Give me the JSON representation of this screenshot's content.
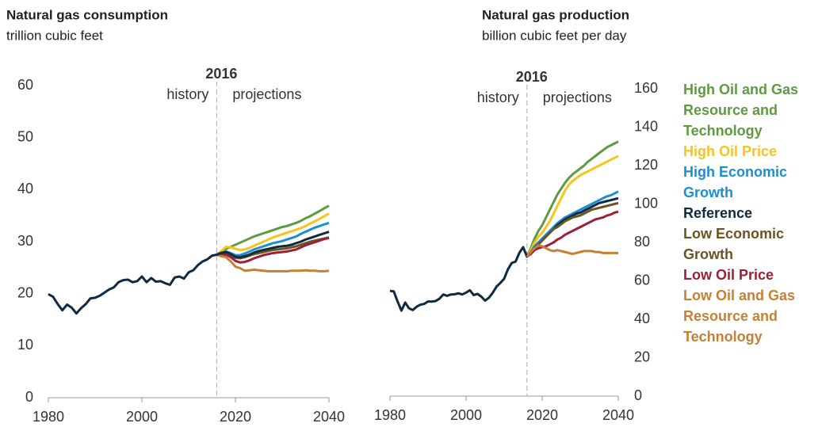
{
  "chart_data": [
    {
      "type": "line",
      "title": "Natural gas consumption",
      "subtitle": "trillion cubic feet",
      "divider": 2016,
      "annotations": [
        "history",
        "projections"
      ],
      "x": [
        1980,
        1981,
        1982,
        1983,
        1984,
        1985,
        1986,
        1987,
        1988,
        1989,
        1990,
        1991,
        1992,
        1993,
        1994,
        1995,
        1996,
        1997,
        1998,
        1999,
        2000,
        2001,
        2002,
        2003,
        2004,
        2005,
        2006,
        2007,
        2008,
        2009,
        2010,
        2011,
        2012,
        2013,
        2014,
        2015,
        2016,
        2017,
        2018,
        2019,
        2020,
        2021,
        2022,
        2023,
        2024,
        2025,
        2026,
        2027,
        2028,
        2029,
        2030,
        2031,
        2032,
        2033,
        2034,
        2035,
        2036,
        2037,
        2038,
        2039,
        2040
      ],
      "xlim": [
        1980,
        2040
      ],
      "xticks": [
        1980,
        2000,
        2020,
        2040
      ],
      "ylim": [
        0,
        60
      ],
      "yticks": [
        0,
        10,
        20,
        30,
        40,
        50,
        60
      ],
      "series": [
        {
          "name": "High Oil and Gas Resource and Technology",
          "color": "#5e9a3f",
          "values": [
            null,
            null,
            null,
            null,
            null,
            null,
            null,
            null,
            null,
            null,
            null,
            null,
            null,
            null,
            null,
            null,
            null,
            null,
            null,
            null,
            null,
            null,
            null,
            null,
            null,
            null,
            null,
            null,
            null,
            null,
            null,
            null,
            null,
            null,
            null,
            null,
            27.5,
            28.0,
            28.6,
            29.0,
            29.4,
            29.8,
            30.2,
            30.6,
            31.0,
            31.3,
            31.6,
            31.9,
            32.2,
            32.5,
            32.8,
            33.0,
            33.3,
            33.6,
            34.0,
            34.5,
            34.9,
            35.4,
            35.9,
            36.4,
            36.9
          ]
        },
        {
          "name": "High Oil Price",
          "color": "#f7c41f",
          "values": [
            null,
            null,
            null,
            null,
            null,
            null,
            null,
            null,
            null,
            null,
            null,
            null,
            null,
            null,
            null,
            null,
            null,
            null,
            null,
            null,
            null,
            null,
            null,
            null,
            null,
            null,
            null,
            null,
            null,
            null,
            null,
            null,
            null,
            null,
            null,
            null,
            27.5,
            28.2,
            29.0,
            28.9,
            28.6,
            28.4,
            28.5,
            28.8,
            29.2,
            29.6,
            30.0,
            30.4,
            30.8,
            31.1,
            31.4,
            31.7,
            32.0,
            32.3,
            32.6,
            33.0,
            33.5,
            33.9,
            34.4,
            34.9,
            35.4
          ]
        },
        {
          "name": "High Economic Growth",
          "color": "#1b8fd2",
          "values": [
            null,
            null,
            null,
            null,
            null,
            null,
            null,
            null,
            null,
            null,
            null,
            null,
            null,
            null,
            null,
            null,
            null,
            null,
            null,
            null,
            null,
            null,
            null,
            null,
            null,
            null,
            null,
            null,
            null,
            null,
            null,
            null,
            null,
            null,
            null,
            null,
            27.5,
            27.9,
            28.1,
            27.8,
            27.4,
            27.4,
            27.7,
            28.1,
            28.5,
            28.8,
            29.1,
            29.4,
            29.7,
            29.9,
            30.1,
            30.4,
            30.7,
            31.0,
            31.5,
            31.9,
            32.3,
            32.7,
            33.0,
            33.3,
            33.6
          ]
        },
        {
          "name": "Low Economic Growth",
          "color": "#6b5424",
          "values": [
            null,
            null,
            null,
            null,
            null,
            null,
            null,
            null,
            null,
            null,
            null,
            null,
            null,
            null,
            null,
            null,
            null,
            null,
            null,
            null,
            null,
            null,
            null,
            null,
            null,
            null,
            null,
            null,
            null,
            null,
            null,
            null,
            null,
            null,
            null,
            null,
            27.5,
            27.8,
            27.9,
            27.4,
            26.9,
            26.8,
            27.0,
            27.3,
            27.6,
            27.8,
            28.0,
            28.2,
            28.4,
            28.5,
            28.6,
            28.7,
            28.9,
            29.1,
            29.4,
            29.7,
            30.0,
            30.2,
            30.4,
            30.6,
            30.8
          ]
        },
        {
          "name": "Low Oil Price",
          "color": "#9b1f36",
          "values": [
            null,
            null,
            null,
            null,
            null,
            null,
            null,
            null,
            null,
            null,
            null,
            null,
            null,
            null,
            null,
            null,
            null,
            null,
            null,
            null,
            null,
            null,
            null,
            null,
            null,
            null,
            null,
            null,
            null,
            null,
            null,
            null,
            null,
            null,
            null,
            null,
            27.5,
            27.4,
            27.5,
            27.0,
            26.3,
            26.0,
            26.1,
            26.4,
            26.8,
            27.1,
            27.4,
            27.6,
            27.8,
            27.9,
            28.0,
            28.1,
            28.3,
            28.5,
            28.9,
            29.3,
            29.6,
            29.9,
            30.2,
            30.5,
            30.7
          ]
        },
        {
          "name": "Low Oil and Gas Resource and Technology",
          "color": "#c58035",
          "values": [
            null,
            null,
            null,
            null,
            null,
            null,
            null,
            null,
            null,
            null,
            null,
            null,
            null,
            null,
            null,
            null,
            null,
            null,
            null,
            null,
            null,
            null,
            null,
            null,
            null,
            null,
            null,
            null,
            null,
            null,
            null,
            null,
            null,
            null,
            null,
            null,
            27.5,
            27.2,
            27.0,
            26.2,
            25.2,
            24.9,
            24.4,
            24.5,
            24.6,
            24.5,
            24.4,
            24.3,
            24.3,
            24.3,
            24.3,
            24.3,
            24.4,
            24.4,
            24.4,
            24.5,
            24.4,
            24.4,
            24.3,
            24.3,
            24.4
          ]
        },
        {
          "name": "Reference",
          "color": "#0f2a40",
          "values": [
            19.9,
            19.4,
            18.0,
            16.8,
            17.9,
            17.3,
            16.2,
            17.2,
            18.0,
            19.1,
            19.2,
            19.6,
            20.2,
            20.8,
            21.2,
            22.2,
            22.6,
            22.7,
            22.2,
            22.4,
            23.3,
            22.2,
            23.0,
            22.3,
            22.4,
            22.0,
            21.7,
            23.1,
            23.3,
            22.9,
            24.1,
            24.5,
            25.5,
            26.2,
            26.6,
            27.3,
            27.5,
            27.8,
            28.0,
            27.6,
            27.1,
            27.0,
            27.2,
            27.5,
            27.9,
            28.2,
            28.4,
            28.6,
            28.8,
            29.0,
            29.1,
            29.2,
            29.4,
            29.7,
            30.0,
            30.4,
            30.7,
            31.0,
            31.3,
            31.6,
            31.9
          ]
        }
      ]
    },
    {
      "type": "line",
      "title": "Natural gas production",
      "subtitle": "billion cubic feet per day",
      "divider": 2016,
      "annotations": [
        "history",
        "projections"
      ],
      "x": [
        1980,
        1981,
        1982,
        1983,
        1984,
        1985,
        1986,
        1987,
        1988,
        1989,
        1990,
        1991,
        1992,
        1993,
        1994,
        1995,
        1996,
        1997,
        1998,
        1999,
        2000,
        2001,
        2002,
        2003,
        2004,
        2005,
        2006,
        2007,
        2008,
        2009,
        2010,
        2011,
        2012,
        2013,
        2014,
        2015,
        2016,
        2017,
        2018,
        2019,
        2020,
        2021,
        2022,
        2023,
        2024,
        2025,
        2026,
        2027,
        2028,
        2029,
        2030,
        2031,
        2032,
        2033,
        2034,
        2035,
        2036,
        2037,
        2038,
        2039,
        2040
      ],
      "xlim": [
        1980,
        2040
      ],
      "xticks": [
        1980,
        2000,
        2020,
        2040
      ],
      "ylim": [
        0,
        160
      ],
      "yticks": [
        0,
        20,
        40,
        60,
        80,
        100,
        120,
        140,
        160
      ],
      "series": [
        {
          "name": "High Oil and Gas Resource and Technology",
          "color": "#5e9a3f",
          "values": [
            null,
            null,
            null,
            null,
            null,
            null,
            null,
            null,
            null,
            null,
            null,
            null,
            null,
            null,
            null,
            null,
            null,
            null,
            null,
            null,
            null,
            null,
            null,
            null,
            null,
            null,
            null,
            null,
            null,
            null,
            null,
            null,
            null,
            null,
            null,
            null,
            72.6,
            77,
            82,
            86,
            89,
            93,
            97,
            101,
            105,
            108,
            111,
            113.5,
            115.5,
            117,
            118.5,
            120,
            122,
            123.5,
            125,
            126.5,
            128,
            129.5,
            130.5,
            131.5,
            132.5
          ]
        },
        {
          "name": "High Oil Price",
          "color": "#f7c41f",
          "values": [
            null,
            null,
            null,
            null,
            null,
            null,
            null,
            null,
            null,
            null,
            null,
            null,
            null,
            null,
            null,
            null,
            null,
            null,
            null,
            null,
            null,
            null,
            null,
            null,
            null,
            null,
            null,
            null,
            null,
            null,
            null,
            null,
            null,
            null,
            null,
            null,
            72.6,
            76,
            80,
            83,
            85,
            88,
            91,
            95,
            99,
            103,
            107,
            110,
            112,
            113.5,
            115,
            116,
            117,
            118,
            119,
            120,
            121,
            122,
            123,
            124,
            125
          ]
        },
        {
          "name": "High Economic Growth",
          "color": "#1b8fd2",
          "values": [
            null,
            null,
            null,
            null,
            null,
            null,
            null,
            null,
            null,
            null,
            null,
            null,
            null,
            null,
            null,
            null,
            null,
            null,
            null,
            null,
            null,
            null,
            null,
            null,
            null,
            null,
            null,
            null,
            null,
            null,
            null,
            null,
            null,
            null,
            null,
            null,
            72.6,
            75,
            78,
            80,
            82,
            84,
            86,
            88,
            90,
            91.5,
            93,
            94,
            95,
            96,
            97,
            98,
            99,
            100,
            101,
            102,
            103,
            104,
            104.5,
            105.5,
            106.5
          ]
        },
        {
          "name": "Reference",
          "color": "#0f2a40",
          "values": [
            54.8,
            54.5,
            49.2,
            44.5,
            48.7,
            45.7,
            44.8,
            46.5,
            47.6,
            48.0,
            49.3,
            49.2,
            49.5,
            50.7,
            52.9,
            52.2,
            52.9,
            53.0,
            53.5,
            52.9,
            53.9,
            55.1,
            52.6,
            53.2,
            51.8,
            49.7,
            51.2,
            53.8,
            57.0,
            58.9,
            61.1,
            66.0,
            69.3,
            70.0,
            74.6,
            77.5,
            72.6,
            75,
            77,
            79,
            81,
            83,
            85,
            87,
            89,
            90.5,
            92,
            93,
            94,
            95,
            95.5,
            96.5,
            97.5,
            98.5,
            99.5,
            100.5,
            101,
            101.5,
            102,
            102.5,
            103
          ]
        },
        {
          "name": "Low Economic Growth",
          "color": "#6b5424",
          "values": [
            null,
            null,
            null,
            null,
            null,
            null,
            null,
            null,
            null,
            null,
            null,
            null,
            null,
            null,
            null,
            null,
            null,
            null,
            null,
            null,
            null,
            null,
            null,
            null,
            null,
            null,
            null,
            null,
            null,
            null,
            null,
            null,
            null,
            null,
            null,
            null,
            72.6,
            75,
            77,
            79,
            81,
            83,
            85,
            87,
            88,
            89.5,
            91,
            92,
            93,
            93.5,
            94,
            95,
            96,
            97,
            97.5,
            98,
            98.5,
            99,
            99.5,
            100,
            100.5
          ]
        },
        {
          "name": "Low Oil Price",
          "color": "#9b1f36",
          "values": [
            null,
            null,
            null,
            null,
            null,
            null,
            null,
            null,
            null,
            null,
            null,
            null,
            null,
            null,
            null,
            null,
            null,
            null,
            null,
            null,
            null,
            null,
            null,
            null,
            null,
            null,
            null,
            null,
            null,
            null,
            null,
            null,
            null,
            null,
            null,
            null,
            72.6,
            74,
            76,
            77,
            77.5,
            78,
            79,
            80,
            81.5,
            82.5,
            84,
            85,
            86,
            87,
            88,
            89,
            90,
            91,
            92,
            92.5,
            93,
            94,
            94.5,
            95.5,
            96
          ]
        },
        {
          "name": "Low Oil and Gas Resource and Technology",
          "color": "#c58035",
          "values": [
            null,
            null,
            null,
            null,
            null,
            null,
            null,
            null,
            null,
            null,
            null,
            null,
            null,
            null,
            null,
            null,
            null,
            null,
            null,
            null,
            null,
            null,
            null,
            null,
            null,
            null,
            null,
            null,
            null,
            null,
            null,
            null,
            null,
            null,
            null,
            null,
            72.6,
            75,
            77,
            78.5,
            78,
            77,
            76,
            75.5,
            76,
            75.5,
            75,
            74.5,
            74,
            74.5,
            75,
            75.5,
            75.5,
            75.5,
            75,
            75,
            74.5,
            74.5,
            74.5,
            74.5,
            74.5
          ]
        }
      ]
    }
  ]
}
